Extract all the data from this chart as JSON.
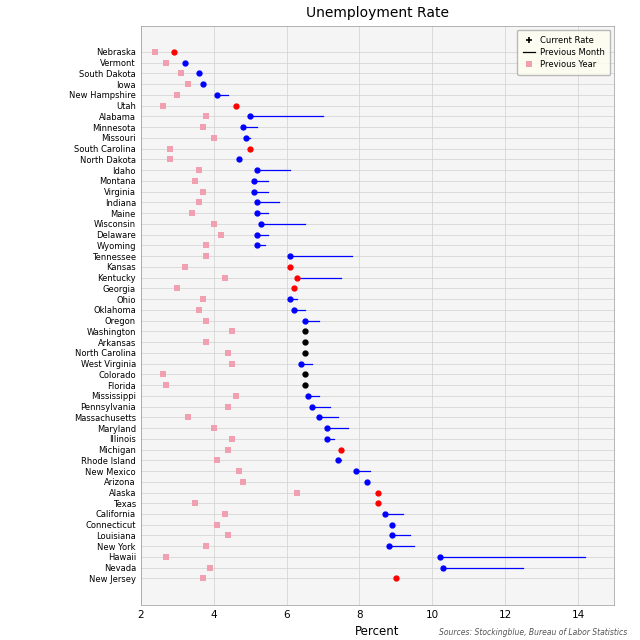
{
  "title": "Unemployment Rate",
  "xlabel": "Percent",
  "source": "Sources: Stockingblue, Bureau of Labor Statistics",
  "states": [
    "Nebraska",
    "Vermont",
    "South Dakota",
    "Iowa",
    "New Hampshire",
    "Utah",
    "Alabama",
    "Minnesota",
    "Missouri",
    "South Carolina",
    "North Dakota",
    "Idaho",
    "Montana",
    "Virginia",
    "Indiana",
    "Maine",
    "Wisconsin",
    "Delaware",
    "Wyoming",
    "Tennessee",
    "Kansas",
    "Kentucky",
    "Georgia",
    "Ohio",
    "Oklahoma",
    "Oregon",
    "Washington",
    "Arkansas",
    "North Carolina",
    "West Virginia",
    "Colorado",
    "Florida",
    "Mississippi",
    "Pennsylvania",
    "Massachusetts",
    "Maryland",
    "Illinois",
    "Michigan",
    "Rhode Island",
    "New Mexico",
    "Arizona",
    "Alaska",
    "Texas",
    "California",
    "Connecticut",
    "Louisiana",
    "New York",
    "Hawaii",
    "Nevada",
    "New Jersey"
  ],
  "current": [
    2.9,
    3.2,
    3.6,
    3.7,
    4.1,
    4.6,
    5.0,
    4.8,
    4.9,
    5.0,
    4.7,
    5.2,
    5.1,
    5.1,
    5.2,
    5.2,
    5.3,
    5.2,
    5.2,
    6.1,
    6.1,
    6.3,
    6.2,
    6.1,
    6.2,
    6.5,
    6.5,
    6.5,
    6.5,
    6.4,
    6.5,
    6.5,
    6.6,
    6.7,
    6.9,
    7.1,
    7.1,
    7.5,
    7.4,
    7.9,
    8.2,
    8.5,
    8.5,
    8.7,
    8.9,
    8.9,
    8.8,
    10.2,
    10.3,
    9.0
  ],
  "prev_month_end": [
    null,
    null,
    null,
    null,
    4.4,
    null,
    7.0,
    5.2,
    5.0,
    null,
    null,
    6.1,
    5.5,
    5.5,
    5.8,
    5.5,
    6.5,
    5.5,
    5.4,
    7.8,
    null,
    7.5,
    null,
    6.3,
    6.5,
    6.9,
    null,
    null,
    null,
    6.7,
    null,
    null,
    6.9,
    7.2,
    7.4,
    7.7,
    7.3,
    null,
    7.5,
    8.3,
    null,
    null,
    8.5,
    9.2,
    8.9,
    9.4,
    9.5,
    14.2,
    12.5,
    null
  ],
  "prev_year": [
    2.4,
    2.7,
    3.1,
    3.3,
    3.0,
    2.6,
    3.8,
    3.7,
    4.0,
    2.8,
    2.8,
    3.6,
    3.5,
    3.7,
    3.6,
    3.4,
    4.0,
    4.2,
    3.8,
    3.8,
    3.2,
    4.3,
    3.0,
    3.7,
    3.6,
    3.8,
    4.5,
    3.8,
    4.4,
    4.5,
    2.6,
    2.7,
    4.6,
    4.4,
    3.3,
    4.0,
    4.5,
    4.4,
    4.1,
    4.7,
    4.8,
    6.3,
    3.5,
    4.3,
    4.1,
    4.4,
    3.8,
    2.7,
    3.9,
    3.7
  ],
  "dot_colors": [
    "red",
    "blue",
    "blue",
    "blue",
    "blue",
    "red",
    "blue",
    "blue",
    "blue",
    "red",
    "blue",
    "blue",
    "blue",
    "blue",
    "blue",
    "blue",
    "blue",
    "blue",
    "blue",
    "blue",
    "red",
    "red",
    "red",
    "blue",
    "blue",
    "blue",
    "black",
    "black",
    "black",
    "blue",
    "black",
    "black",
    "blue",
    "blue",
    "blue",
    "blue",
    "blue",
    "red",
    "blue",
    "blue",
    "blue",
    "red",
    "red",
    "blue",
    "blue",
    "blue",
    "blue",
    "blue",
    "blue",
    "red"
  ],
  "line_colors": [
    "none",
    "none",
    "none",
    "none",
    "blue",
    "none",
    "blue",
    "blue",
    "blue",
    "none",
    "none",
    "blue",
    "blue",
    "blue",
    "blue",
    "blue",
    "blue",
    "blue",
    "blue",
    "blue",
    "none",
    "blue",
    "red",
    "blue",
    "blue",
    "blue",
    "none",
    "none",
    "none",
    "blue",
    "none",
    "none",
    "blue",
    "blue",
    "blue",
    "blue",
    "blue",
    "none",
    "blue",
    "blue",
    "none",
    "none",
    "red",
    "blue",
    "red",
    "blue",
    "blue",
    "blue",
    "blue",
    "none"
  ],
  "xlim": [
    2,
    15
  ],
  "xticks": [
    2,
    4,
    6,
    8,
    10,
    12,
    14
  ],
  "bg_color": "#f5f5f5",
  "grid_color": "#d0d0d0",
  "prev_year_color": "#f0a0b0",
  "legend_bg": "#fffff0",
  "label_fontsize": 6.0,
  "tick_fontsize": 7.5
}
